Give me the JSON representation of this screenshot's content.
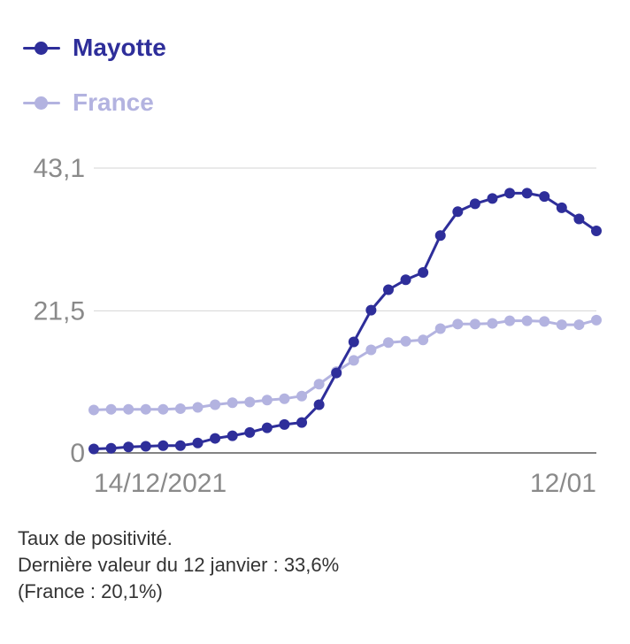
{
  "colors": {
    "mayotte": "#2e2e9a",
    "france": "#b3b3e0",
    "grid": "#d4d4d4",
    "axis_text": "#8a8a8a"
  },
  "chart_data": {
    "type": "line",
    "x_tick_labels": [
      "14/12/2021",
      "12/01"
    ],
    "y_ticks": [
      0,
      21.5,
      43.1
    ],
    "y_tick_labels": [
      "0",
      "21,5",
      "43,1"
    ],
    "ylim": [
      0,
      43.1
    ],
    "grid": true,
    "legend_position": "top-left",
    "series": [
      {
        "name": "Mayotte",
        "values": [
          0.6,
          0.7,
          0.9,
          1.0,
          1.1,
          1.1,
          1.5,
          2.2,
          2.6,
          3.1,
          3.8,
          4.3,
          4.6,
          7.3,
          12.1,
          16.8,
          21.6,
          24.7,
          26.2,
          27.3,
          32.9,
          36.5,
          37.7,
          38.5,
          39.3,
          39.3,
          38.8,
          37.1,
          35.4,
          33.6
        ]
      },
      {
        "name": "France",
        "values": [
          6.5,
          6.6,
          6.6,
          6.6,
          6.6,
          6.7,
          6.9,
          7.3,
          7.6,
          7.7,
          8.0,
          8.2,
          8.6,
          10.4,
          12.3,
          14.0,
          15.6,
          16.7,
          16.9,
          17.1,
          18.8,
          19.5,
          19.5,
          19.6,
          20.0,
          20.0,
          19.9,
          19.4,
          19.4,
          20.1
        ]
      }
    ]
  },
  "caption": {
    "line1": "Taux de positivité.",
    "line2": "Dernière valeur du 12 janvier : 33,6%",
    "line3": "(France : 20,1%)"
  }
}
